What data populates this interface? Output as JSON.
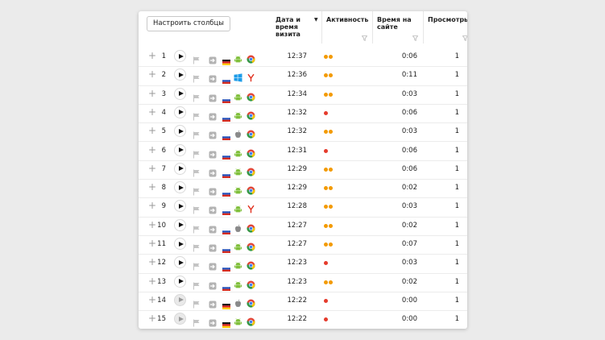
{
  "toolbar": {
    "configure_columns_label": "Настроить столбцы"
  },
  "columns": {
    "date": [
      "Дата и",
      "время",
      "визита"
    ],
    "activity": "Активность",
    "time_on_site": [
      "Время на",
      "сайте"
    ],
    "views": "Просмотры"
  },
  "colors": {
    "activity_orange": "#f39a00",
    "activity_red": "#e53b2c"
  },
  "rows": [
    {
      "n": "1",
      "time": "12:37",
      "flag": "de",
      "os": "android",
      "browser": "chrome",
      "activity": [
        "orange",
        "orange"
      ],
      "duration": "0:06",
      "views": "1",
      "replay": true
    },
    {
      "n": "2",
      "time": "12:36",
      "flag": "ru",
      "os": "windows",
      "browser": "yandex",
      "activity": [
        "orange",
        "orange"
      ],
      "duration": "0:11",
      "views": "1",
      "replay": true
    },
    {
      "n": "3",
      "time": "12:34",
      "flag": "ru",
      "os": "android",
      "browser": "chrome",
      "activity": [
        "orange",
        "orange"
      ],
      "duration": "0:03",
      "views": "1",
      "replay": true
    },
    {
      "n": "4",
      "time": "12:32",
      "flag": "ru",
      "os": "android",
      "browser": "chrome",
      "activity": [
        "red"
      ],
      "duration": "0:06",
      "views": "1",
      "replay": true
    },
    {
      "n": "5",
      "time": "12:32",
      "flag": "ru",
      "os": "apple",
      "browser": "chrome",
      "activity": [
        "orange",
        "orange"
      ],
      "duration": "0:03",
      "views": "1",
      "replay": true
    },
    {
      "n": "6",
      "time": "12:31",
      "flag": "ru",
      "os": "android",
      "browser": "chrome",
      "activity": [
        "red"
      ],
      "duration": "0:06",
      "views": "1",
      "replay": true
    },
    {
      "n": "7",
      "time": "12:29",
      "flag": "ru",
      "os": "android",
      "browser": "chrome",
      "activity": [
        "orange",
        "orange"
      ],
      "duration": "0:06",
      "views": "1",
      "replay": true
    },
    {
      "n": "8",
      "time": "12:29",
      "flag": "ru",
      "os": "android",
      "browser": "chrome",
      "activity": [
        "orange",
        "orange"
      ],
      "duration": "0:02",
      "views": "1",
      "replay": true
    },
    {
      "n": "9",
      "time": "12:28",
      "flag": "ru",
      "os": "android",
      "browser": "yandex",
      "activity": [
        "orange",
        "orange"
      ],
      "duration": "0:03",
      "views": "1",
      "replay": true
    },
    {
      "n": "10",
      "time": "12:27",
      "flag": "ru",
      "os": "apple",
      "browser": "chrome",
      "activity": [
        "orange",
        "orange"
      ],
      "duration": "0:02",
      "views": "1",
      "replay": true
    },
    {
      "n": "11",
      "time": "12:27",
      "flag": "ru",
      "os": "android",
      "browser": "chrome",
      "activity": [
        "orange",
        "orange"
      ],
      "duration": "0:07",
      "views": "1",
      "replay": true
    },
    {
      "n": "12",
      "time": "12:23",
      "flag": "ru",
      "os": "android",
      "browser": "chrome",
      "activity": [
        "red"
      ],
      "duration": "0:03",
      "views": "1",
      "replay": true
    },
    {
      "n": "13",
      "time": "12:23",
      "flag": "ru",
      "os": "android",
      "browser": "chrome",
      "activity": [
        "orange",
        "orange"
      ],
      "duration": "0:02",
      "views": "1",
      "replay": true
    },
    {
      "n": "14",
      "time": "12:22",
      "flag": "de",
      "os": "apple",
      "browser": "chrome",
      "activity": [
        "red"
      ],
      "duration": "0:00",
      "views": "1",
      "replay": false
    },
    {
      "n": "15",
      "time": "12:22",
      "flag": "de",
      "os": "android",
      "browser": "chrome",
      "activity": [
        "red"
      ],
      "duration": "0:00",
      "views": "1",
      "replay": false
    }
  ]
}
